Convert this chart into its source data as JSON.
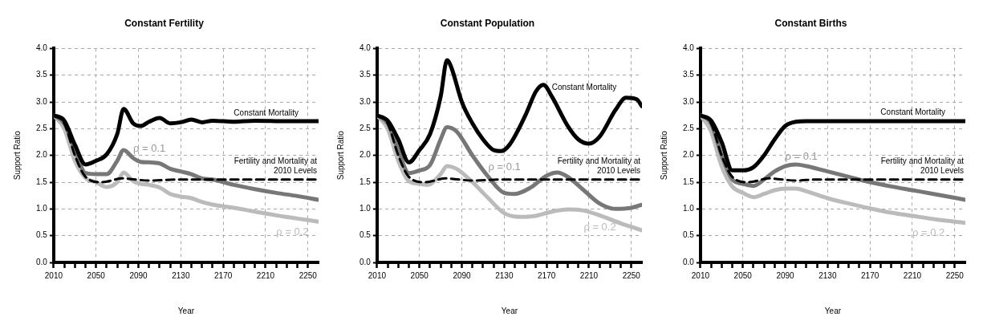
{
  "chart_data": [
    {
      "type": "line",
      "title": "Constant Fertility",
      "xlabel": "Year",
      "ylabel": "Support Ratio",
      "xlim": [
        2010,
        2260
      ],
      "ylim": [
        0,
        4
      ],
      "xticks": [
        2010,
        {
          "value": 2020,
          "label": null
        },
        {
          "value": 2030,
          "label": null
        },
        {
          "value": 2040,
          "label": null
        },
        2050,
        {
          "value": 2060,
          "label": null
        },
        {
          "value": 2070,
          "label": null
        },
        {
          "value": 2080,
          "label": null
        },
        2090,
        {
          "value": 2100,
          "label": null
        },
        {
          "value": 2110,
          "label": null
        },
        {
          "value": 2120,
          "label": null
        },
        2130,
        {
          "value": 2140,
          "label": null
        },
        {
          "value": 2150,
          "label": null
        },
        {
          "value": 2160,
          "label": null
        },
        2170,
        {
          "value": 2180,
          "label": null
        },
        {
          "value": 2190,
          "label": null
        },
        {
          "value": 2200,
          "label": null
        },
        2210,
        {
          "value": 2220,
          "label": null
        },
        {
          "value": 2230,
          "label": null
        },
        {
          "value": 2240,
          "label": null
        },
        2250
      ],
      "yticks": [
        {
          "value": 0,
          "label": "0.0"
        },
        0.5,
        {
          "value": 1,
          "label": "1.0"
        },
        1.5,
        {
          "value": 2,
          "label": "2.0"
        },
        2.5,
        {
          "value": 3,
          "label": "3.0"
        },
        3.5,
        {
          "value": 4,
          "label": "4.0"
        }
      ],
      "grid": true,
      "series": [
        {
          "color": "#000000",
          "x": [
            2010,
            2020,
            2030,
            2040,
            2050,
            2060,
            2070,
            2076,
            2085,
            2092,
            2100,
            2110,
            2120,
            2130,
            2140,
            2150,
            2160,
            2180,
            2200,
            2230,
            2260
          ],
          "values": [
            2.75,
            2.65,
            2.2,
            1.83,
            1.9,
            2.02,
            2.4,
            2.87,
            2.6,
            2.55,
            2.63,
            2.7,
            2.6,
            2.62,
            2.67,
            2.62,
            2.65,
            2.63,
            2.65,
            2.64,
            2.64
          ]
        },
        {
          "color": "#000000",
          "line_style": "dashed",
          "x": [
            2010,
            2020,
            2030,
            2040,
            2055,
            2075,
            2100,
            2130,
            2260
          ],
          "values": [
            2.75,
            2.6,
            2.0,
            1.6,
            1.5,
            1.57,
            1.53,
            1.55,
            1.55
          ]
        },
        {
          "color": "#777777",
          "x": [
            2010,
            2020,
            2030,
            2040,
            2050,
            2060,
            2070,
            2076,
            2085,
            2092,
            2100,
            2110,
            2120,
            2130,
            2140,
            2150,
            2160,
            2180,
            2200,
            2220,
            2240,
            2260
          ],
          "values": [
            2.75,
            2.6,
            2.1,
            1.67,
            1.65,
            1.65,
            1.9,
            2.1,
            1.95,
            1.88,
            1.87,
            1.85,
            1.75,
            1.7,
            1.65,
            1.57,
            1.55,
            1.45,
            1.37,
            1.3,
            1.24,
            1.17
          ]
        },
        {
          "color": "#bbbbbb",
          "x": [
            2010,
            2020,
            2030,
            2040,
            2050,
            2060,
            2070,
            2076,
            2085,
            2092,
            2100,
            2110,
            2120,
            2130,
            2140,
            2150,
            2160,
            2180,
            2200,
            2220,
            2240,
            2260
          ],
          "values": [
            2.75,
            2.5,
            1.9,
            1.58,
            1.5,
            1.41,
            1.5,
            1.68,
            1.52,
            1.47,
            1.45,
            1.4,
            1.28,
            1.23,
            1.2,
            1.13,
            1.08,
            1.02,
            0.95,
            0.88,
            0.82,
            0.76
          ]
        }
      ],
      "annotations": [
        {
          "text": "Constant Mortality",
          "x": 2180,
          "y": 2.63
        },
        {
          "text": "ρ = 0.1",
          "x": 2085,
          "y": 1.95
        },
        {
          "text": "Fertility and Mortality at 2010 Levels",
          "x": 2260,
          "y": 1.55
        },
        {
          "text": "ρ = 0.2",
          "x": 2220,
          "y": 0.88
        }
      ]
    },
    {
      "type": "line",
      "title": "Constant Population",
      "xlabel": "Year",
      "ylabel": "Support Ratio",
      "xlim": [
        2010,
        2260
      ],
      "ylim": [
        0,
        4
      ],
      "xticks": [
        2010,
        {
          "value": 2020,
          "label": null
        },
        {
          "value": 2030,
          "label": null
        },
        {
          "value": 2040,
          "label": null
        },
        2050,
        {
          "value": 2060,
          "label": null
        },
        {
          "value": 2070,
          "label": null
        },
        {
          "value": 2080,
          "label": null
        },
        2090,
        {
          "value": 2100,
          "label": null
        },
        {
          "value": 2110,
          "label": null
        },
        {
          "value": 2120,
          "label": null
        },
        2130,
        {
          "value": 2140,
          "label": null
        },
        {
          "value": 2150,
          "label": null
        },
        {
          "value": 2160,
          "label": null
        },
        2170,
        {
          "value": 2180,
          "label": null
        },
        {
          "value": 2190,
          "label": null
        },
        {
          "value": 2200,
          "label": null
        },
        2210,
        {
          "value": 2220,
          "label": null
        },
        {
          "value": 2230,
          "label": null
        },
        {
          "value": 2240,
          "label": null
        },
        2250
      ],
      "yticks": [
        {
          "value": 0,
          "label": "0.0"
        },
        0.5,
        {
          "value": 1,
          "label": "1.0"
        },
        1.5,
        {
          "value": 2,
          "label": "2.0"
        },
        2.5,
        {
          "value": 3,
          "label": "3.0"
        },
        3.5,
        {
          "value": 4,
          "label": "4.0"
        }
      ],
      "grid": true,
      "series": [
        {
          "color": "#000000",
          "x": [
            2010,
            2020,
            2030,
            2040,
            2050,
            2060,
            2070,
            2076,
            2080,
            2090,
            2100,
            2110,
            2120,
            2127,
            2135,
            2150,
            2160,
            2167,
            2175,
            2190,
            2200,
            2210,
            2220,
            2235,
            2245,
            2255,
            2260
          ],
          "values": [
            2.75,
            2.65,
            2.3,
            1.87,
            2.1,
            2.4,
            3.1,
            3.78,
            3.65,
            3.0,
            2.6,
            2.3,
            2.1,
            2.08,
            2.2,
            2.75,
            3.2,
            3.32,
            3.1,
            2.55,
            2.3,
            2.22,
            2.35,
            2.85,
            3.08,
            3.05,
            2.92
          ]
        },
        {
          "color": "#000000",
          "line_style": "dashed",
          "x": [
            2010,
            2020,
            2030,
            2040,
            2055,
            2075,
            2100,
            2130,
            2260
          ],
          "values": [
            2.75,
            2.6,
            2.0,
            1.6,
            1.5,
            1.57,
            1.53,
            1.55,
            1.55
          ]
        },
        {
          "color": "#777777",
          "x": [
            2010,
            2020,
            2030,
            2040,
            2050,
            2060,
            2070,
            2076,
            2085,
            2100,
            2115,
            2130,
            2140,
            2155,
            2170,
            2180,
            2190,
            2205,
            2220,
            2235,
            2250,
            2260
          ],
          "values": [
            2.75,
            2.6,
            2.1,
            1.67,
            1.72,
            1.82,
            2.3,
            2.53,
            2.45,
            2.0,
            1.6,
            1.3,
            1.28,
            1.4,
            1.62,
            1.68,
            1.6,
            1.35,
            1.1,
            1.0,
            1.02,
            1.08
          ]
        },
        {
          "color": "#bbbbbb",
          "x": [
            2010,
            2020,
            2030,
            2040,
            2050,
            2058,
            2070,
            2076,
            2085,
            2100,
            2115,
            2130,
            2145,
            2160,
            2175,
            2190,
            2205,
            2220,
            2240,
            2260
          ],
          "values": [
            2.75,
            2.5,
            1.9,
            1.52,
            1.47,
            1.45,
            1.65,
            1.8,
            1.75,
            1.5,
            1.2,
            0.92,
            0.85,
            0.87,
            0.95,
            0.99,
            0.97,
            0.88,
            0.73,
            0.6
          ]
        }
      ],
      "annotations": [
        {
          "text": "Constant Mortality",
          "x": 2175,
          "y": 3.1
        },
        {
          "text": "ρ = 0.1",
          "x": 2115,
          "y": 1.6
        },
        {
          "text": "Fertility and Mortality at 2010 Levels",
          "x": 2260,
          "y": 1.55
        },
        {
          "text": "ρ = 0.2",
          "x": 2205,
          "y": 0.97
        }
      ]
    },
    {
      "type": "line",
      "title": "Constant Births",
      "xlabel": "Year",
      "ylabel": "Support Ratio",
      "xlim": [
        2010,
        2260
      ],
      "ylim": [
        0,
        4
      ],
      "xticks": [
        2010,
        {
          "value": 2020,
          "label": null
        },
        {
          "value": 2030,
          "label": null
        },
        {
          "value": 2040,
          "label": null
        },
        2050,
        {
          "value": 2060,
          "label": null
        },
        {
          "value": 2070,
          "label": null
        },
        {
          "value": 2080,
          "label": null
        },
        2090,
        {
          "value": 2100,
          "label": null
        },
        {
          "value": 2110,
          "label": null
        },
        {
          "value": 2120,
          "label": null
        },
        2130,
        {
          "value": 2140,
          "label": null
        },
        {
          "value": 2150,
          "label": null
        },
        {
          "value": 2160,
          "label": null
        },
        2170,
        {
          "value": 2180,
          "label": null
        },
        {
          "value": 2190,
          "label": null
        },
        {
          "value": 2200,
          "label": null
        },
        2210,
        {
          "value": 2220,
          "label": null
        },
        {
          "value": 2230,
          "label": null
        },
        {
          "value": 2240,
          "label": null
        },
        2250
      ],
      "yticks": [
        {
          "value": 0,
          "label": "0.0"
        },
        0.5,
        {
          "value": 1,
          "label": "1.0"
        },
        1.5,
        {
          "value": 2,
          "label": "2.0"
        },
        2.5,
        {
          "value": 3,
          "label": "3.0"
        },
        3.5,
        {
          "value": 4,
          "label": "4.0"
        }
      ],
      "grid": true,
      "series": [
        {
          "color": "#000000",
          "x": [
            2010,
            2020,
            2030,
            2040,
            2050,
            2060,
            2070,
            2080,
            2090,
            2100,
            2110,
            2180,
            2260
          ],
          "values": [
            2.75,
            2.65,
            2.25,
            1.72,
            1.72,
            1.78,
            2.0,
            2.3,
            2.55,
            2.63,
            2.64,
            2.64,
            2.64
          ]
        },
        {
          "color": "#000000",
          "line_style": "dashed",
          "x": [
            2010,
            2020,
            2030,
            2040,
            2055,
            2075,
            2100,
            2120,
            2260
          ],
          "values": [
            2.75,
            2.6,
            2.0,
            1.6,
            1.5,
            1.57,
            1.53,
            1.55,
            1.55
          ]
        },
        {
          "color": "#777777",
          "x": [
            2010,
            2020,
            2030,
            2040,
            2050,
            2060,
            2070,
            2080,
            2090,
            2100,
            2110,
            2130,
            2150,
            2170,
            2190,
            2210,
            2230,
            2260
          ],
          "values": [
            2.75,
            2.6,
            2.0,
            1.55,
            1.47,
            1.43,
            1.55,
            1.7,
            1.8,
            1.83,
            1.8,
            1.7,
            1.6,
            1.5,
            1.42,
            1.35,
            1.28,
            1.17
          ]
        },
        {
          "color": "#bbbbbb",
          "x": [
            2010,
            2020,
            2030,
            2040,
            2050,
            2060,
            2070,
            2080,
            2090,
            2100,
            2110,
            2130,
            2150,
            2170,
            2190,
            2210,
            2230,
            2260
          ],
          "values": [
            2.75,
            2.45,
            1.8,
            1.42,
            1.3,
            1.22,
            1.28,
            1.35,
            1.38,
            1.38,
            1.33,
            1.2,
            1.1,
            1.01,
            0.93,
            0.87,
            0.81,
            0.74
          ]
        }
      ],
      "annotations": [
        {
          "text": "Constant Mortality",
          "x": 2180,
          "y": 2.64
        },
        {
          "text": "ρ = 0.1",
          "x": 2090,
          "y": 1.8
        },
        {
          "text": "Fertility and Mortality at 2010 Levels",
          "x": 2260,
          "y": 1.55
        },
        {
          "text": "ρ = 0.2",
          "x": 2210,
          "y": 0.87
        }
      ]
    }
  ]
}
